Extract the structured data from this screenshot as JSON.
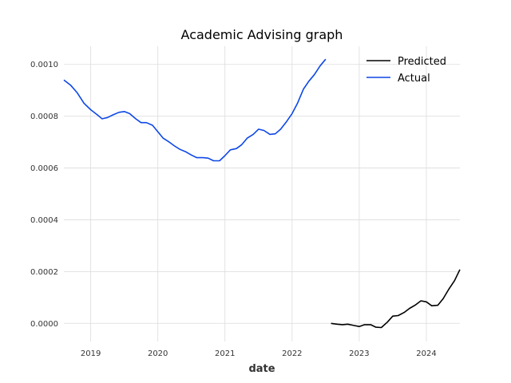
{
  "chart_data": {
    "type": "line",
    "title": "Academic Advising graph",
    "xlabel": "date",
    "ylabel": "",
    "xlim": [
      2018.6,
      2024.5
    ],
    "ylim": [
      -7e-05,
      0.00107
    ],
    "grid": true,
    "legend_position": "top-right",
    "x_ticks": [
      2019,
      2020,
      2021,
      2022,
      2023,
      2024
    ],
    "x_tick_labels": [
      "2019",
      "2020",
      "2021",
      "2022",
      "2023",
      "2024"
    ],
    "y_ticks": [
      0,
      0.0002,
      0.0004,
      0.0006,
      0.0008,
      0.001
    ],
    "y_tick_labels": [
      "0.0000",
      "0.0002",
      "0.0004",
      "0.0006",
      "0.0008",
      "0.0010"
    ],
    "series": [
      {
        "name": "Predicted",
        "color": "#000000",
        "x": [
          2022.58,
          2022.67,
          2022.75,
          2022.83,
          2022.92,
          2023.0,
          2023.08,
          2023.17,
          2023.25,
          2023.33,
          2023.42,
          2023.5,
          2023.58,
          2023.67,
          2023.75,
          2023.83,
          2023.92,
          2024.0,
          2024.08,
          2024.17,
          2024.25,
          2024.33,
          2024.42,
          2024.5
        ],
        "y": [
          0.0,
          -3e-06,
          -5e-06,
          -3e-06,
          -8e-06,
          -1.2e-05,
          -5e-06,
          -5e-06,
          -1.5e-05,
          -1.6e-05,
          5e-06,
          2.8e-05,
          3e-05,
          4.2e-05,
          5.8e-05,
          7e-05,
          8.7e-05,
          8.3e-05,
          6.8e-05,
          7e-05,
          9.5e-05,
          0.00013,
          0.000165,
          0.000208
        ]
      },
      {
        "name": "Actual",
        "color": "#0d47e6",
        "x": [
          2018.6,
          2018.7,
          2018.8,
          2018.9,
          2019.0,
          2019.1,
          2019.17,
          2019.25,
          2019.33,
          2019.42,
          2019.5,
          2019.58,
          2019.67,
          2019.75,
          2019.83,
          2019.92,
          2020.0,
          2020.08,
          2020.17,
          2020.25,
          2020.33,
          2020.42,
          2020.5,
          2020.58,
          2020.67,
          2020.75,
          2020.83,
          2020.92,
          2021.0,
          2021.08,
          2021.17,
          2021.25,
          2021.33,
          2021.42,
          2021.5,
          2021.58,
          2021.67,
          2021.75,
          2021.83,
          2021.92,
          2022.0,
          2022.08,
          2022.17,
          2022.25,
          2022.33,
          2022.42,
          2022.5
        ],
        "y": [
          0.00094,
          0.00092,
          0.00089,
          0.00085,
          0.000825,
          0.000805,
          0.00079,
          0.000795,
          0.000805,
          0.000815,
          0.000818,
          0.00081,
          0.00079,
          0.000775,
          0.000775,
          0.000765,
          0.00074,
          0.000715,
          0.0007,
          0.000685,
          0.000672,
          0.000662,
          0.00065,
          0.00064,
          0.00064,
          0.000638,
          0.000628,
          0.000628,
          0.000648,
          0.00067,
          0.000675,
          0.00069,
          0.000715,
          0.00073,
          0.00075,
          0.000745,
          0.00073,
          0.000732,
          0.00075,
          0.00078,
          0.00081,
          0.00085,
          0.000905,
          0.000935,
          0.00096,
          0.000995,
          0.00102
        ]
      }
    ]
  }
}
